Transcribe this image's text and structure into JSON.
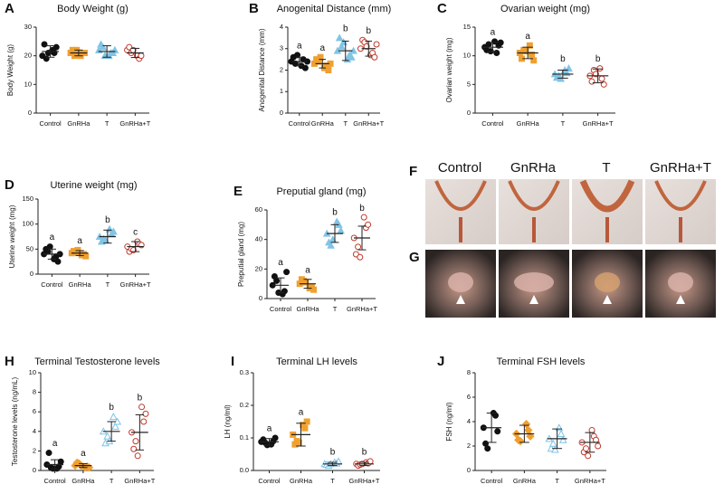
{
  "chart_data": [
    {
      "type": "dot",
      "panel": "A",
      "title": "Body Weight (g)",
      "ylabel": "Body Weight (g)",
      "categories": [
        "Control",
        "GnRHa",
        "T",
        "GnRHa+T"
      ],
      "colors": [
        "#111111",
        "#f0a030",
        "#80c4e6",
        "#c0392b"
      ],
      "markers": [
        "circle",
        "square",
        "triangle",
        "open-circle"
      ],
      "points": [
        [
          20,
          22,
          24,
          21,
          19,
          23,
          21
        ],
        [
          21,
          20,
          22,
          21,
          20,
          21,
          22
        ],
        [
          22,
          20,
          24,
          21,
          23,
          21,
          20,
          22
        ],
        [
          22,
          20,
          23,
          19,
          21,
          20,
          22
        ]
      ],
      "means": [
        21.5,
        21,
        21.5,
        21
      ],
      "sds": [
        2,
        1,
        2,
        1.6
      ],
      "ylim": [
        0,
        30
      ],
      "yticks": [
        0,
        10,
        20,
        30
      ]
    },
    {
      "type": "dot",
      "panel": "B",
      "title": "Anogenital Distance (mm)",
      "ylabel": "Anogenital Distance (mm)",
      "categories": [
        "Control",
        "GnRHa",
        "T",
        "GnRHa+T"
      ],
      "colors": [
        "#111111",
        "#f0a030",
        "#80c4e6",
        "#c0392b"
      ],
      "markers": [
        "circle",
        "square",
        "triangle",
        "open-circle"
      ],
      "points": [
        [
          2.4,
          2.2,
          2.6,
          2.5,
          2.3,
          2.1,
          2.7,
          2.4
        ],
        [
          2.3,
          2.1,
          2.5,
          2.2,
          2.4,
          2.0,
          2.6,
          2.3
        ],
        [
          2.9,
          2.5,
          3.5,
          2.7,
          3.1,
          2.6,
          3.3,
          2.9
        ],
        [
          3.0,
          2.7,
          3.4,
          2.8,
          3.3,
          2.6,
          3.1,
          3.2
        ]
      ],
      "means": [
        2.4,
        2.3,
        2.9,
        3.0
      ],
      "sds": [
        0.2,
        0.2,
        0.45,
        0.35
      ],
      "letters": [
        "a",
        "a",
        "b",
        "b"
      ],
      "ylim": [
        0,
        4
      ],
      "yticks": [
        0,
        1,
        2,
        3,
        4
      ]
    },
    {
      "type": "dot",
      "panel": "C",
      "title": "Ovarian weight (mg)",
      "ylabel": "Ovarian weight (mg)",
      "categories": [
        "Control",
        "GnRHa",
        "T",
        "GnRHa+T"
      ],
      "colors": [
        "#111111",
        "#f0a030",
        "#80c4e6",
        "#c0392b"
      ],
      "markers": [
        "circle",
        "square",
        "triangle",
        "open-circle"
      ],
      "points": [
        [
          11.5,
          12.5,
          11,
          10.5,
          12,
          11.8,
          10.8,
          12.3
        ],
        [
          10.5,
          11.8,
          9.5,
          10.2,
          11,
          9.2,
          10.8
        ],
        [
          6.8,
          7.5,
          6.2,
          7,
          6.5,
          7.8,
          6
        ],
        [
          6.5,
          7.8,
          5.5,
          6,
          7.5,
          5,
          6.8
        ]
      ],
      "means": [
        11.5,
        10.5,
        6.8,
        6.5
      ],
      "sds": [
        0.8,
        1,
        0.7,
        1.2
      ],
      "letters": [
        "a",
        "a",
        "b",
        "b"
      ],
      "ylim": [
        0,
        15
      ],
      "yticks": [
        0,
        5,
        10,
        15
      ]
    },
    {
      "type": "dot",
      "panel": "D",
      "title": "Uterine weight (mg)",
      "ylabel": "Uterine weight (mg)",
      "categories": [
        "Control",
        "GnRHa",
        "T",
        "GnRHa+T"
      ],
      "colors": [
        "#111111",
        "#f0a030",
        "#80c4e6",
        "#c0392b"
      ],
      "markers": [
        "circle",
        "square",
        "triangle",
        "open-circle"
      ],
      "points": [
        [
          40,
          30,
          50,
          35,
          45,
          25,
          55,
          40
        ],
        [
          42,
          38,
          46,
          40,
          44,
          36,
          48
        ],
        [
          75,
          90,
          65,
          80,
          70,
          85,
          68
        ],
        [
          55,
          65,
          45,
          60,
          50,
          58,
          48
        ]
      ],
      "means": [
        40,
        42,
        75,
        55
      ],
      "sds": [
        10,
        5,
        13,
        10
      ],
      "letters": [
        "a",
        "a",
        "b",
        "c"
      ],
      "ylim": [
        0,
        150
      ],
      "yticks": [
        0,
        50,
        100,
        150
      ]
    },
    {
      "type": "dot",
      "panel": "E",
      "title": "Preputial gland (mg)",
      "ylabel": "Preputial gland (mg)",
      "categories": [
        "Control",
        "GnRHa",
        "T",
        "GnRHa+T"
      ],
      "colors": [
        "#111111",
        "#f0a030",
        "#80c4e6",
        "#c0392b"
      ],
      "markers": [
        "circle",
        "square",
        "triangle",
        "open-circle"
      ],
      "points": [
        [
          9,
          3,
          15,
          5,
          12,
          18,
          4
        ],
        [
          10,
          7,
          13,
          8,
          12,
          6,
          11
        ],
        [
          44,
          52,
          38,
          50,
          36,
          46,
          40
        ],
        [
          41,
          55,
          30,
          48,
          35,
          50,
          28
        ]
      ],
      "means": [
        9,
        10,
        44,
        41
      ],
      "sds": [
        5,
        3,
        6,
        8
      ],
      "letters": [
        "a",
        "a",
        "b",
        "b"
      ],
      "ylim": [
        0,
        60
      ],
      "yticks": [
        0,
        20,
        40,
        60
      ]
    },
    {
      "type": "dot",
      "panel": "H",
      "title": "Terminal Testosterone levels",
      "ylabel": "Testosterone levels (ng/mL)",
      "categories": [
        "Control",
        "GnRHa",
        "T",
        "GnRHa+T"
      ],
      "colors": [
        "#111111",
        "#f0a030",
        "#80c4e6",
        "#c0392b"
      ],
      "markers": [
        "circle",
        "diamond",
        "open-triangle",
        "open-circle"
      ],
      "points": [
        [
          0.6,
          0.2,
          1.8,
          0.4,
          0.3,
          0.9,
          0.2
        ],
        [
          0.5,
          0.3,
          0.8,
          0.4,
          0.7,
          0.3,
          0.5
        ],
        [
          4,
          5.5,
          2.8,
          4.5,
          3.5,
          5,
          3
        ],
        [
          3.9,
          6.5,
          2.2,
          5,
          3,
          5.8,
          1.5
        ]
      ],
      "means": [
        0.6,
        0.5,
        4,
        3.9
      ],
      "sds": [
        0.5,
        0.2,
        1,
        1.8
      ],
      "letters": [
        "a",
        "a",
        "b",
        "b"
      ],
      "ylim": [
        0,
        10
      ],
      "yticks": [
        0,
        2,
        4,
        6,
        8,
        10
      ]
    },
    {
      "type": "dot",
      "panel": "I",
      "title": "Terminal LH levels",
      "ylabel": "LH (ng/ml)",
      "categories": [
        "Control",
        "GnRHa",
        "T",
        "GnRHa+T"
      ],
      "colors": [
        "#111111",
        "#f0a030",
        "#80c4e6",
        "#c0392b"
      ],
      "markers": [
        "circle",
        "square",
        "open-triangle",
        "open-circle"
      ],
      "points": [
        [
          0.088,
          0.08,
          0.095,
          0.09,
          0.085,
          0.1,
          0.078
        ],
        [
          0.11,
          0.14,
          0.08,
          0.13,
          0.09,
          0.15,
          0.085
        ],
        [
          0.02,
          0.025,
          0.018,
          0.022,
          0.015,
          0.028,
          0.02
        ],
        [
          0.02,
          0.025,
          0.015,
          0.022,
          0.018,
          0.028,
          0.02
        ]
      ],
      "means": [
        0.088,
        0.11,
        0.02,
        0.02
      ],
      "sds": [
        0.01,
        0.035,
        0.005,
        0.005
      ],
      "letters": [
        "a",
        "a",
        "b",
        "b"
      ],
      "ylim": [
        0,
        0.3
      ],
      "yticks": [
        {
          "value": 0,
          "label": "0.0"
        },
        0.1,
        0.2,
        0.3
      ]
    },
    {
      "type": "dot",
      "panel": "J",
      "title": "Terminal FSH levels",
      "ylabel": "FSH (ng/ml)",
      "categories": [
        "Control",
        "GnRHa",
        "T",
        "GnRHa+T"
      ],
      "colors": [
        "#111111",
        "#f0a030",
        "#80c4e6",
        "#c0392b"
      ],
      "markers": [
        "circle",
        "diamond",
        "open-triangle",
        "open-circle"
      ],
      "points": [
        [
          3.5,
          4.7,
          2.2,
          4.5,
          1.8,
          3.2
        ],
        [
          3,
          3.8,
          2.5,
          3.3,
          2.4,
          2.8
        ],
        [
          2.6,
          3.5,
          1.8,
          3,
          2.2,
          2.5,
          1.7
        ],
        [
          2.3,
          3.3,
          1.5,
          2.8,
          1.8,
          2.5,
          1.2,
          2.0
        ]
      ],
      "means": [
        3.5,
        3,
        2.6,
        2.3
      ],
      "sds": [
        1.2,
        0.7,
        0.8,
        0.8
      ],
      "ylim": [
        0,
        8
      ],
      "yticks": [
        0,
        2,
        4,
        6,
        8
      ]
    }
  ],
  "photo_panels": {
    "labels": [
      "F",
      "G"
    ],
    "columns": [
      "Control",
      "GnRHa",
      "T",
      "GnRHa+T"
    ]
  }
}
